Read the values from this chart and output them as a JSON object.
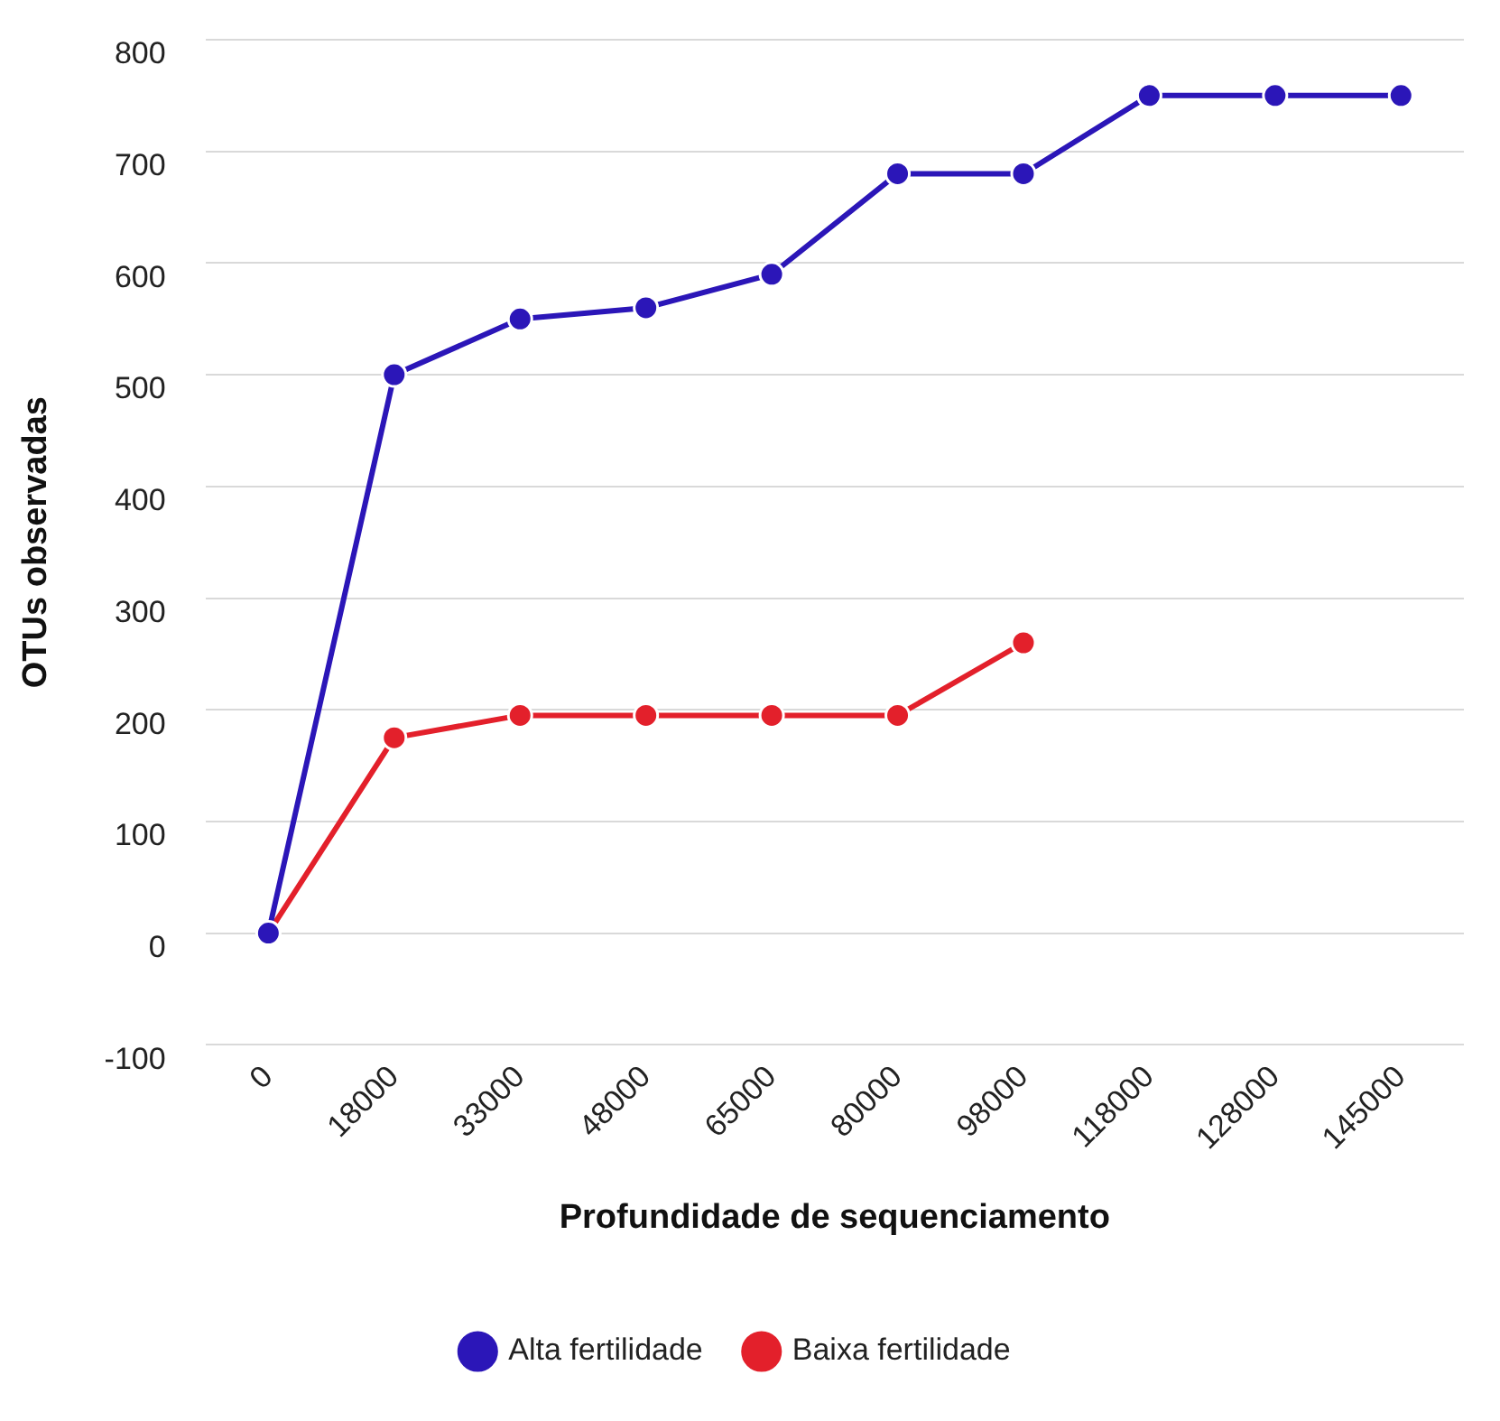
{
  "chart_data": {
    "type": "line",
    "xlabel": "Profundidade de sequenciamento",
    "ylabel": "OTUs observadas",
    "categories": [
      "0",
      "18000",
      "33000",
      "48000",
      "65000",
      "80000",
      "98000",
      "118000",
      "128000",
      "145000"
    ],
    "series": [
      {
        "name": "Alta fertilidade",
        "color": "#2b16b8",
        "values": [
          0,
          500,
          550,
          560,
          590,
          680,
          680,
          750,
          750,
          750
        ]
      },
      {
        "name": "Baixa fertilidade",
        "color": "#e3202b",
        "values": [
          0,
          175,
          195,
          195,
          195,
          195,
          260,
          null,
          null,
          null
        ]
      }
    ],
    "ylim": [
      -100,
      800
    ],
    "yticks": [
      -100,
      0,
      100,
      200,
      300,
      400,
      500,
      600,
      700,
      800
    ],
    "grid": "y",
    "legend": "bottom",
    "marker": "circle",
    "line_style": "solid"
  }
}
